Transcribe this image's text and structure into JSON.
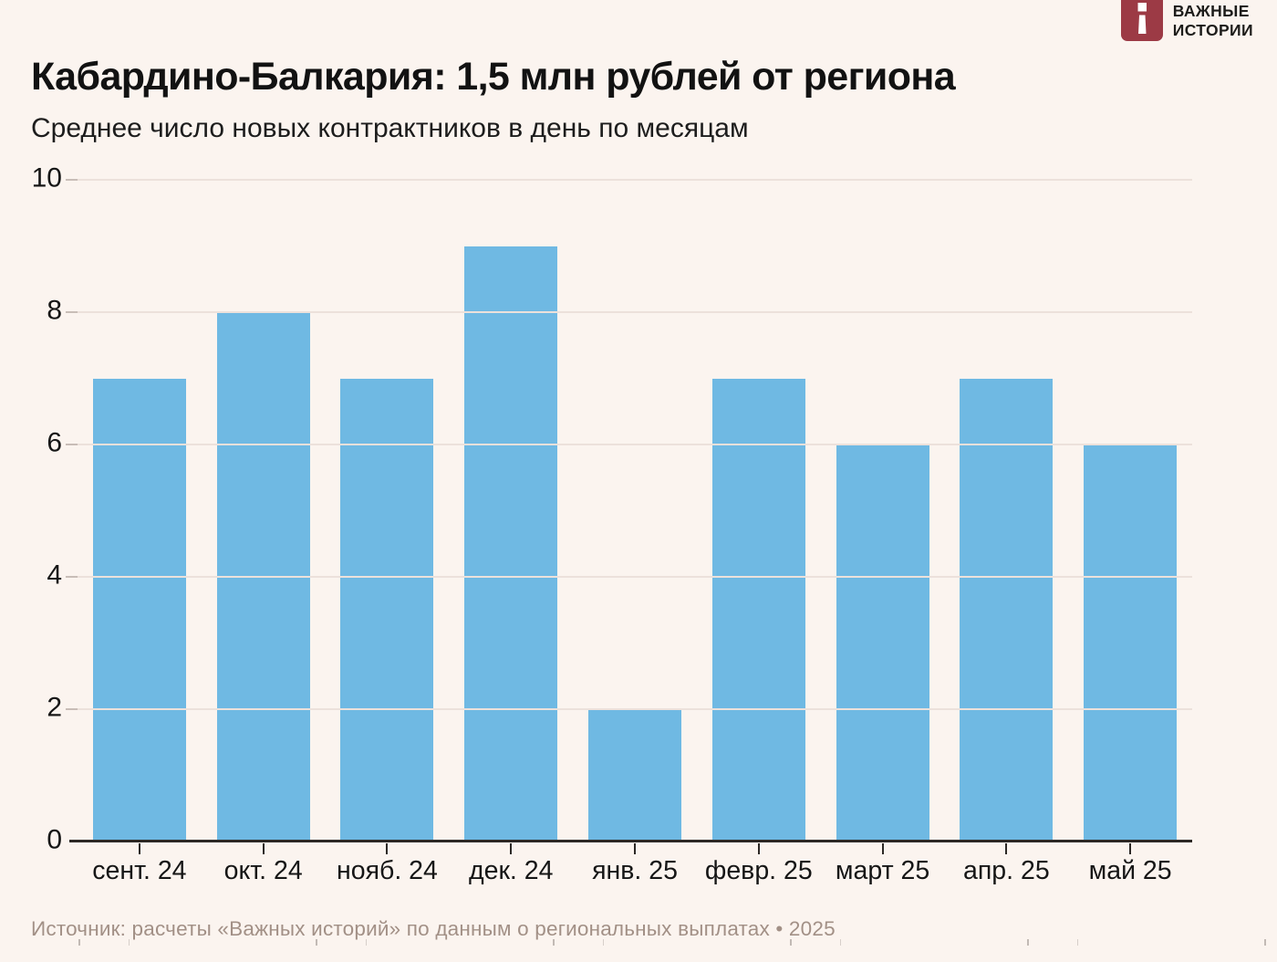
{
  "logo": {
    "line1": "ВАЖНЫЕ",
    "line2": "ИСТОРИИ",
    "icon_color": "#9c3a45",
    "icon_glyph_color": "#ffffff"
  },
  "header": {
    "title": "Кабардино-Балкария: 1,5 млн рублей от региона",
    "subtitle": "Среднее число новых контрактников в день по месяцам"
  },
  "chart_data": {
    "type": "bar",
    "title": "Кабардино-Балкария: 1,5 млн рублей от региона",
    "subtitle": "Среднее число новых контрактников в день по месяцам",
    "categories": [
      "сент. 24",
      "окт. 24",
      "нояб. 24",
      "дек. 24",
      "янв. 25",
      "февр. 25",
      "март 25",
      "апр. 25",
      "май 25"
    ],
    "values": [
      7,
      8,
      7,
      9,
      2,
      7,
      6,
      7,
      6
    ],
    "xlabel": "",
    "ylabel": "",
    "ylim": [
      0,
      10
    ],
    "yticks": [
      0,
      2,
      4,
      6,
      8,
      10
    ],
    "grid": "horizontal",
    "legend": "none",
    "bar_color": "#6fb9e3",
    "background_color": "#fbf4ef",
    "gridline_color": "#ece1db",
    "axis_line_color": "#2c2825"
  },
  "footer": {
    "source": "Источник: расчеты «Важных историй» по данным о региональных выплатах • 2025"
  }
}
